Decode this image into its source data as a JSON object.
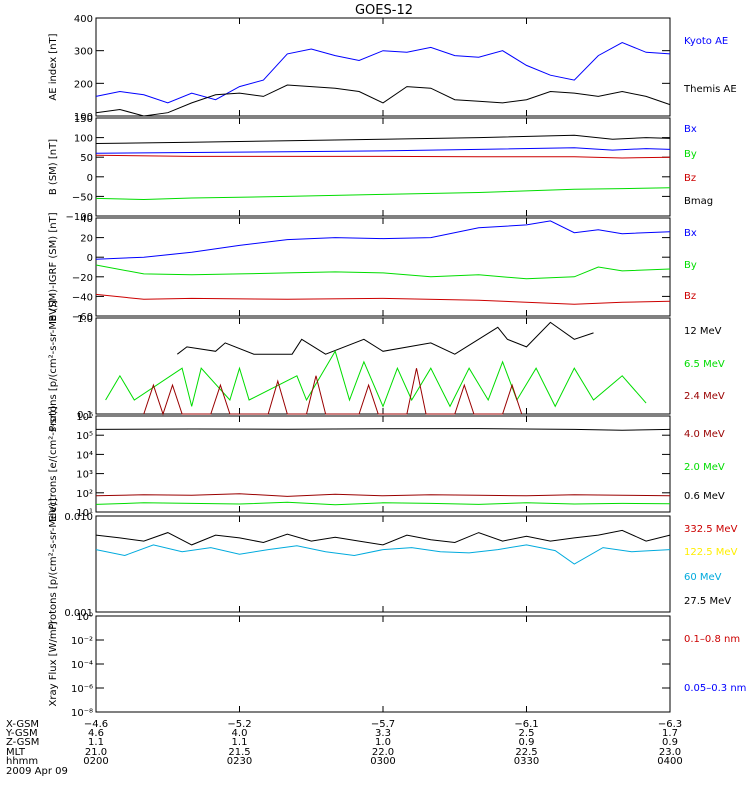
{
  "title": "GOES-12",
  "colors": {
    "black": "#000000",
    "blue": "#0000ff",
    "green": "#00dd00",
    "red": "#cc0000",
    "darkred": "#990000",
    "cyan": "#00aadd",
    "yellow": "#ffee00"
  },
  "chart_data": [
    {
      "type": "line",
      "ylabel": "AE index [nT]",
      "ylim": [
        100,
        400
      ],
      "yticks": [
        "100",
        "200",
        "300",
        "400"
      ],
      "series": [
        {
          "name": "Kyoto AE",
          "color": "blue",
          "x": [
            0,
            5,
            10,
            15,
            20,
            25,
            30,
            35,
            40,
            45,
            50,
            55,
            60,
            65,
            70,
            75,
            80,
            85,
            90,
            95,
            100,
            105,
            110,
            115,
            120
          ],
          "y": [
            160,
            175,
            165,
            140,
            170,
            150,
            190,
            210,
            290,
            305,
            285,
            270,
            300,
            295,
            310,
            285,
            280,
            300,
            255,
            225,
            210,
            285,
            325,
            295,
            290
          ]
        },
        {
          "name": "Themis AE",
          "color": "black",
          "x": [
            0,
            5,
            10,
            15,
            20,
            25,
            30,
            35,
            40,
            45,
            50,
            55,
            60,
            65,
            70,
            75,
            80,
            85,
            90,
            95,
            100,
            105,
            110,
            115,
            120
          ],
          "y": [
            110,
            120,
            100,
            110,
            140,
            165,
            170,
            160,
            195,
            190,
            185,
            175,
            140,
            190,
            185,
            150,
            145,
            140,
            150,
            175,
            170,
            160,
            175,
            160,
            135
          ]
        }
      ]
    },
    {
      "type": "line",
      "ylabel": "B (SM) [nT]",
      "ylim": [
        -100,
        150
      ],
      "yticks": [
        "−100",
        "−50",
        "0",
        "50",
        "100",
        "150"
      ],
      "series": [
        {
          "name": "Bx",
          "color": "blue",
          "x": [
            0,
            20,
            40,
            60,
            80,
            100,
            108,
            115,
            120
          ],
          "y": [
            60,
            62,
            64,
            66,
            70,
            74,
            68,
            72,
            70
          ]
        },
        {
          "name": "By",
          "color": "green",
          "x": [
            0,
            10,
            20,
            40,
            60,
            80,
            100,
            110,
            120
          ],
          "y": [
            -55,
            -58,
            -54,
            -50,
            -45,
            -40,
            -32,
            -30,
            -28
          ]
        },
        {
          "name": "Bz",
          "color": "red",
          "x": [
            0,
            20,
            40,
            60,
            80,
            100,
            110,
            120
          ],
          "y": [
            55,
            52,
            52,
            52,
            51,
            51,
            48,
            50
          ]
        },
        {
          "name": "Bmag",
          "color": "black",
          "x": [
            0,
            20,
            40,
            60,
            80,
            100,
            108,
            115,
            120
          ],
          "y": [
            85,
            88,
            92,
            96,
            100,
            106,
            96,
            100,
            98
          ]
        }
      ]
    },
    {
      "type": "line",
      "ylabel": "B (SM)-IGRF (SM) [nT]",
      "ylim": [
        -60,
        40
      ],
      "yticks": [
        "−60",
        "−40",
        "−20",
        "0",
        "20",
        "40"
      ],
      "series": [
        {
          "name": "Bx",
          "color": "blue",
          "x": [
            0,
            10,
            20,
            30,
            40,
            50,
            60,
            70,
            80,
            90,
            95,
            100,
            105,
            110,
            120
          ],
          "y": [
            -2,
            0,
            5,
            12,
            18,
            20,
            19,
            20,
            30,
            33,
            37,
            25,
            28,
            24,
            26
          ]
        },
        {
          "name": "By",
          "color": "green",
          "x": [
            0,
            10,
            20,
            30,
            40,
            50,
            60,
            70,
            80,
            90,
            100,
            105,
            110,
            120
          ],
          "y": [
            -8,
            -17,
            -18,
            -17,
            -16,
            -15,
            -16,
            -20,
            -18,
            -22,
            -20,
            -10,
            -14,
            -12
          ]
        },
        {
          "name": "Bz",
          "color": "red",
          "x": [
            0,
            10,
            20,
            40,
            60,
            80,
            100,
            110,
            120
          ],
          "y": [
            -38,
            -43,
            -42,
            -43,
            -42,
            -44,
            -48,
            -46,
            -45
          ]
        }
      ]
    },
    {
      "type": "line",
      "ylabel": "Protons [p/(cm²-s-sr-MeV)]",
      "ylim": [
        0.1,
        1.0
      ],
      "log": true,
      "yticks": [
        "0.1",
        "1.0"
      ],
      "series": [
        {
          "name": "12 MeV",
          "color": "black",
          "x": [
            17,
            19,
            25,
            27,
            33,
            41,
            43,
            48,
            56,
            60,
            70,
            75,
            84,
            86,
            90,
            95,
            100,
            104
          ],
          "y": [
            0.42,
            0.5,
            0.45,
            0.55,
            0.42,
            0.42,
            0.6,
            0.42,
            0.6,
            0.45,
            0.55,
            0.42,
            0.8,
            0.6,
            0.5,
            0.9,
            0.6,
            0.7
          ]
        },
        {
          "name": "6.5 MeV",
          "color": "green",
          "x": [
            2,
            5,
            8,
            18,
            20,
            22,
            28,
            30,
            32,
            42,
            44,
            50,
            53,
            56,
            60,
            63,
            66,
            70,
            74,
            78,
            82,
            85,
            88,
            92,
            96,
            100,
            104,
            110,
            115
          ],
          "y": [
            0.14,
            0.25,
            0.14,
            0.3,
            0.12,
            0.3,
            0.14,
            0.3,
            0.14,
            0.25,
            0.14,
            0.45,
            0.14,
            0.35,
            0.12,
            0.3,
            0.14,
            0.3,
            0.12,
            0.3,
            0.14,
            0.35,
            0.14,
            0.3,
            0.12,
            0.3,
            0.14,
            0.25,
            0.13
          ]
        },
        {
          "name": "2.4 MeV",
          "color": "darkred",
          "x": [
            10,
            12,
            14,
            16,
            18,
            24,
            26,
            28,
            36,
            38,
            40,
            44,
            46,
            48,
            55,
            57,
            59,
            65,
            67,
            69,
            75,
            77,
            79,
            85,
            87,
            89
          ],
          "y": [
            0.1,
            0.2,
            0.1,
            0.2,
            0.1,
            0.1,
            0.2,
            0.1,
            0.1,
            0.22,
            0.1,
            0.1,
            0.25,
            0.1,
            0.1,
            0.2,
            0.1,
            0.1,
            0.3,
            0.1,
            0.1,
            0.2,
            0.1,
            0.1,
            0.2,
            0.1
          ]
        }
      ]
    },
    {
      "type": "line",
      "ylabel": "Electrons [e/(cm²-s-sr)]",
      "ylim": [
        10,
        1000000
      ],
      "log": true,
      "yticks": [
        "10¹",
        "10²",
        "10³",
        "10⁴",
        "10⁵",
        "10⁶"
      ],
      "series": [
        {
          "name": "4.0 MeV",
          "color": "darkred",
          "x": [
            0,
            10,
            20,
            30,
            40,
            50,
            60,
            70,
            80,
            90,
            100,
            110,
            120
          ],
          "y": [
            70,
            80,
            75,
            90,
            65,
            85,
            70,
            80,
            75,
            70,
            80,
            75,
            70
          ]
        },
        {
          "name": "2.0 MeV",
          "color": "green",
          "x": [
            0,
            10,
            20,
            30,
            40,
            50,
            60,
            70,
            80,
            90,
            100,
            110,
            120
          ],
          "y": [
            25,
            30,
            28,
            26,
            32,
            24,
            30,
            28,
            25,
            30,
            26,
            28,
            27
          ]
        },
        {
          "name": "0.6 MeV",
          "color": "black",
          "x": [
            0,
            20,
            40,
            60,
            80,
            100,
            110,
            120
          ],
          "y": [
            200000,
            210000,
            205000,
            215000,
            220000,
            200000,
            180000,
            200000
          ]
        }
      ]
    },
    {
      "type": "line",
      "ylabel": "Protons [p/(cm²-s-sr-MeV)]",
      "ylim": [
        0.001,
        0.1
      ],
      "log": true,
      "yticks": [
        "0.001",
        "0.010"
      ],
      "series": [
        {
          "name": "332.5 MeV",
          "color": "red",
          "x": [],
          "y": []
        },
        {
          "name": "122.5 MeV",
          "color": "yellow",
          "x": [],
          "y": []
        },
        {
          "name": "60 MeV",
          "color": "cyan",
          "x": [
            0,
            6,
            12,
            18,
            24,
            30,
            36,
            42,
            48,
            54,
            60,
            66,
            72,
            78,
            84,
            90,
            96,
            100,
            106,
            112,
            120
          ],
          "y": [
            0.02,
            0.015,
            0.025,
            0.018,
            0.022,
            0.016,
            0.02,
            0.024,
            0.018,
            0.015,
            0.02,
            0.022,
            0.018,
            0.017,
            0.02,
            0.025,
            0.019,
            0.01,
            0.022,
            0.018,
            0.02
          ]
        },
        {
          "name": "27.5 MeV",
          "color": "black",
          "x": [
            0,
            5,
            10,
            15,
            20,
            25,
            30,
            35,
            40,
            45,
            50,
            55,
            60,
            65,
            70,
            75,
            80,
            85,
            90,
            95,
            100,
            105,
            110,
            115,
            120
          ],
          "y": [
            0.04,
            0.035,
            0.03,
            0.045,
            0.025,
            0.04,
            0.035,
            0.028,
            0.042,
            0.03,
            0.036,
            0.03,
            0.025,
            0.04,
            0.032,
            0.028,
            0.045,
            0.03,
            0.038,
            0.03,
            0.035,
            0.04,
            0.05,
            0.03,
            0.04
          ]
        }
      ]
    },
    {
      "type": "line",
      "ylabel": "Xray Flux [W/m²]",
      "ylim": [
        1e-09,
        1
      ],
      "log": true,
      "yticks": [
        "10⁻⁸",
        "10⁻⁶",
        "10⁻⁴",
        "10⁻²",
        "10⁰"
      ],
      "series": [
        {
          "name": "0.1–0.8 nm",
          "color": "red",
          "x": [],
          "y": []
        },
        {
          "name": "0.05–0.3 nm",
          "color": "blue",
          "x": [],
          "y": []
        }
      ]
    }
  ],
  "axis": {
    "xlim": [
      0,
      120
    ],
    "ticks": [
      0,
      30,
      60,
      90,
      120
    ],
    "rows": [
      {
        "label": "X-GSM",
        "values": [
          "−4.6",
          "−5.2",
          "−5.7",
          "−6.1",
          "−6.3"
        ]
      },
      {
        "label": "Y-GSM",
        "values": [
          "4.6",
          "4.0",
          "3.3",
          "2.5",
          "1.7"
        ]
      },
      {
        "label": "Z-GSM",
        "values": [
          "1.1",
          "1.1",
          "1.0",
          "0.9",
          "0.9"
        ]
      },
      {
        "label": "MLT",
        "values": [
          "21.0",
          "21.5",
          "22.0",
          "22.5",
          "23.0"
        ]
      },
      {
        "label": "hhmm",
        "values": [
          "0200",
          "0230",
          "0300",
          "0330",
          "0400"
        ]
      }
    ],
    "date": "2009 Apr 09"
  }
}
